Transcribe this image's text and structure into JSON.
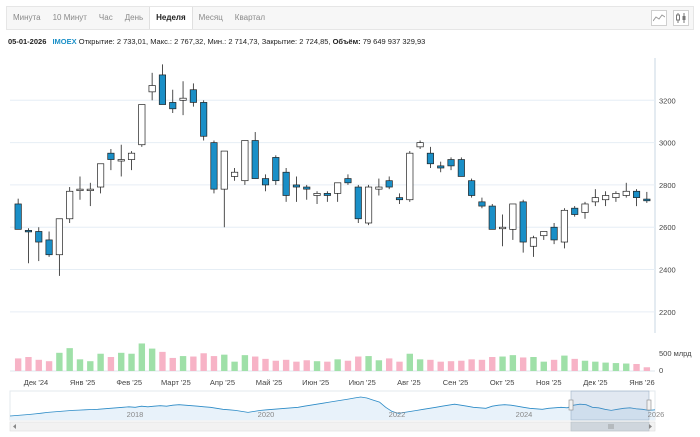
{
  "toolbar": {
    "tabs": [
      {
        "label": "Минута",
        "active": false
      },
      {
        "label": "10 Минут",
        "active": false
      },
      {
        "label": "Час",
        "active": false
      },
      {
        "label": "День",
        "active": false
      },
      {
        "label": "Неделя",
        "active": true
      },
      {
        "label": "Месяц",
        "active": false
      },
      {
        "label": "Квартал",
        "active": false
      }
    ],
    "icons": [
      "line-chart-icon",
      "candlestick-chart-icon"
    ]
  },
  "info": {
    "date": "05-01-2026",
    "ticker": "IMOEX",
    "open_label": "Открытие:",
    "open": "2 733,01",
    "high_label": "Макс.:",
    "high": "2 767,32",
    "low_label": "Мин.:",
    "low": "2 714,73",
    "close_label": "Закрытие:",
    "close": "2 724,85",
    "volume_label": "Объём:",
    "volume": "79 649 937 329,93"
  },
  "colors": {
    "up": "#ffffff",
    "down": "#1a8fc7",
    "vol_up": "#9fe0a8",
    "vol_down": "#f7b3c6",
    "grid": "#e6eef5",
    "navigator": "#2a8ac6"
  },
  "chart_data": {
    "type": "candlestick",
    "y_ticks": [
      "3200",
      "3000",
      "2800",
      "2600",
      "2400",
      "2200"
    ],
    "ylim": [
      2100,
      3400
    ],
    "volume_tick": "500 млрд",
    "volume_zero": "0",
    "x_labels": [
      "Дек '24",
      "Янв '25",
      "Фев '25",
      "Март '25",
      "Апр '25",
      "Май '25",
      "Июн '25",
      "Июл '25",
      "Авг '25",
      "Сен '25",
      "Окт '25",
      "Ноя '25",
      "Дек '25",
      "Янв '26"
    ],
    "nav_labels": [
      "2018",
      "2020",
      "2022",
      "2024",
      "2026"
    ],
    "candles": [
      {
        "o": 2710,
        "h": 2735,
        "l": 2590,
        "c": 2590,
        "v": 270
      },
      {
        "o": 2585,
        "h": 2595,
        "l": 2430,
        "c": 2580,
        "v": 300
      },
      {
        "o": 2580,
        "h": 2600,
        "l": 2440,
        "c": 2530,
        "v": 240
      },
      {
        "o": 2540,
        "h": 2580,
        "l": 2460,
        "c": 2470,
        "v": 210
      },
      {
        "o": 2470,
        "h": 2640,
        "l": 2370,
        "c": 2640,
        "v": 390
      },
      {
        "o": 2640,
        "h": 2790,
        "l": 2620,
        "c": 2770,
        "v": 490
      },
      {
        "o": 2775,
        "h": 2840,
        "l": 2730,
        "c": 2780,
        "v": 250
      },
      {
        "o": 2780,
        "h": 2810,
        "l": 2700,
        "c": 2780,
        "v": 210
      },
      {
        "o": 2790,
        "h": 2900,
        "l": 2760,
        "c": 2900,
        "v": 370
      },
      {
        "o": 2950,
        "h": 2970,
        "l": 2870,
        "c": 2920,
        "v": 300
      },
      {
        "o": 2920,
        "h": 2990,
        "l": 2840,
        "c": 2920,
        "v": 390
      },
      {
        "o": 2920,
        "h": 2960,
        "l": 2870,
        "c": 2950,
        "v": 370
      },
      {
        "o": 2990,
        "h": 3180,
        "l": 2980,
        "c": 3180,
        "v": 590
      },
      {
        "o": 3240,
        "h": 3330,
        "l": 3200,
        "c": 3270,
        "v": 480
      },
      {
        "o": 3320,
        "h": 3370,
        "l": 3180,
        "c": 3180,
        "v": 410
      },
      {
        "o": 3190,
        "h": 3250,
        "l": 3140,
        "c": 3160,
        "v": 280
      },
      {
        "o": 3200,
        "h": 3290,
        "l": 3130,
        "c": 3210,
        "v": 320
      },
      {
        "o": 3250,
        "h": 3280,
        "l": 3170,
        "c": 3190,
        "v": 310
      },
      {
        "o": 3190,
        "h": 3200,
        "l": 3010,
        "c": 3030,
        "v": 380
      },
      {
        "o": 3000,
        "h": 3010,
        "l": 2760,
        "c": 2780,
        "v": 320
      },
      {
        "o": 2780,
        "h": 2950,
        "l": 2600,
        "c": 2960,
        "v": 350
      },
      {
        "o": 2840,
        "h": 2880,
        "l": 2820,
        "c": 2860,
        "v": 200
      },
      {
        "o": 2820,
        "h": 3010,
        "l": 2800,
        "c": 3010,
        "v": 340
      },
      {
        "o": 3010,
        "h": 3050,
        "l": 2830,
        "c": 2830,
        "v": 310
      },
      {
        "o": 2830,
        "h": 2850,
        "l": 2770,
        "c": 2800,
        "v": 260
      },
      {
        "o": 2930,
        "h": 2940,
        "l": 2800,
        "c": 2820,
        "v": 220
      },
      {
        "o": 2860,
        "h": 2880,
        "l": 2720,
        "c": 2750,
        "v": 240
      },
      {
        "o": 2800,
        "h": 2840,
        "l": 2720,
        "c": 2790,
        "v": 200
      },
      {
        "o": 2790,
        "h": 2800,
        "l": 2730,
        "c": 2780,
        "v": 230
      },
      {
        "o": 2750,
        "h": 2770,
        "l": 2710,
        "c": 2760,
        "v": 210
      },
      {
        "o": 2760,
        "h": 2770,
        "l": 2720,
        "c": 2750,
        "v": 200
      },
      {
        "o": 2760,
        "h": 2810,
        "l": 2720,
        "c": 2810,
        "v": 250
      },
      {
        "o": 2830,
        "h": 2850,
        "l": 2800,
        "c": 2810,
        "v": 220
      },
      {
        "o": 2790,
        "h": 2800,
        "l": 2620,
        "c": 2640,
        "v": 310
      },
      {
        "o": 2620,
        "h": 2800,
        "l": 2610,
        "c": 2790,
        "v": 320
      },
      {
        "o": 2780,
        "h": 2830,
        "l": 2750,
        "c": 2790,
        "v": 230
      },
      {
        "o": 2820,
        "h": 2840,
        "l": 2780,
        "c": 2790,
        "v": 270
      },
      {
        "o": 2740,
        "h": 2760,
        "l": 2710,
        "c": 2730,
        "v": 200
      },
      {
        "o": 2730,
        "h": 2960,
        "l": 2720,
        "c": 2950,
        "v": 370
      },
      {
        "o": 2980,
        "h": 3010,
        "l": 2970,
        "c": 3000,
        "v": 250
      },
      {
        "o": 2950,
        "h": 2980,
        "l": 2880,
        "c": 2900,
        "v": 240
      },
      {
        "o": 2890,
        "h": 2910,
        "l": 2860,
        "c": 2880,
        "v": 200
      },
      {
        "o": 2920,
        "h": 2930,
        "l": 2870,
        "c": 2890,
        "v": 210
      },
      {
        "o": 2920,
        "h": 2930,
        "l": 2840,
        "c": 2840,
        "v": 220
      },
      {
        "o": 2820,
        "h": 2830,
        "l": 2740,
        "c": 2750,
        "v": 250
      },
      {
        "o": 2720,
        "h": 2740,
        "l": 2690,
        "c": 2700,
        "v": 240
      },
      {
        "o": 2700,
        "h": 2710,
        "l": 2590,
        "c": 2590,
        "v": 300
      },
      {
        "o": 2600,
        "h": 2660,
        "l": 2510,
        "c": 2600,
        "v": 310
      },
      {
        "o": 2590,
        "h": 2710,
        "l": 2540,
        "c": 2710,
        "v": 340
      },
      {
        "o": 2720,
        "h": 2730,
        "l": 2480,
        "c": 2530,
        "v": 290
      },
      {
        "o": 2510,
        "h": 2560,
        "l": 2460,
        "c": 2550,
        "v": 300
      },
      {
        "o": 2560,
        "h": 2580,
        "l": 2540,
        "c": 2580,
        "v": 200
      },
      {
        "o": 2600,
        "h": 2620,
        "l": 2520,
        "c": 2540,
        "v": 240
      },
      {
        "o": 2530,
        "h": 2690,
        "l": 2500,
        "c": 2680,
        "v": 330
      },
      {
        "o": 2690,
        "h": 2700,
        "l": 2650,
        "c": 2660,
        "v": 260
      },
      {
        "o": 2670,
        "h": 2720,
        "l": 2640,
        "c": 2710,
        "v": 220
      },
      {
        "o": 2720,
        "h": 2780,
        "l": 2700,
        "c": 2740,
        "v": 200
      },
      {
        "o": 2730,
        "h": 2770,
        "l": 2700,
        "c": 2750,
        "v": 180
      },
      {
        "o": 2740,
        "h": 2770,
        "l": 2720,
        "c": 2760,
        "v": 170
      },
      {
        "o": 2750,
        "h": 2810,
        "l": 2740,
        "c": 2770,
        "v": 160
      },
      {
        "o": 2770,
        "h": 2780,
        "l": 2700,
        "c": 2740,
        "v": 150
      },
      {
        "o": 2733,
        "h": 2767,
        "l": 2715,
        "c": 2725,
        "v": 80
      }
    ],
    "navigator_series": [
      2150,
      2200,
      2250,
      2300,
      2350,
      2420,
      2500,
      2550,
      2600,
      2650,
      2700,
      2720,
      2750,
      2780,
      2800,
      2850,
      2900,
      2950,
      3000,
      3050,
      3000,
      3100,
      3050,
      3100,
      3150,
      3100,
      3200,
      3250,
      3200,
      3150,
      3100,
      3050,
      3000,
      2900,
      2800,
      2750,
      2700,
      2600,
      2500,
      2600,
      2700,
      2750,
      2800,
      2850,
      2900,
      2950,
      3000,
      3100,
      3200,
      3300,
      3400,
      3500,
      3600,
      3700,
      3800,
      3900,
      4000,
      3900,
      3700,
      3500,
      3000,
      2600,
      2400,
      2500,
      2600,
      2700,
      2800,
      2900,
      3000,
      3100,
      3200,
      3300,
      3200,
      3100,
      3000,
      2950,
      2900,
      3100,
      3200,
      3250,
      3200,
      3100,
      3000,
      2900,
      2850,
      2800,
      2900,
      2950,
      3000,
      2950,
      3200,
      3300,
      3250,
      3000,
      2950,
      2800,
      2700,
      2800,
      2900,
      2950,
      2850,
      2800,
      2700,
      2750
    ]
  }
}
